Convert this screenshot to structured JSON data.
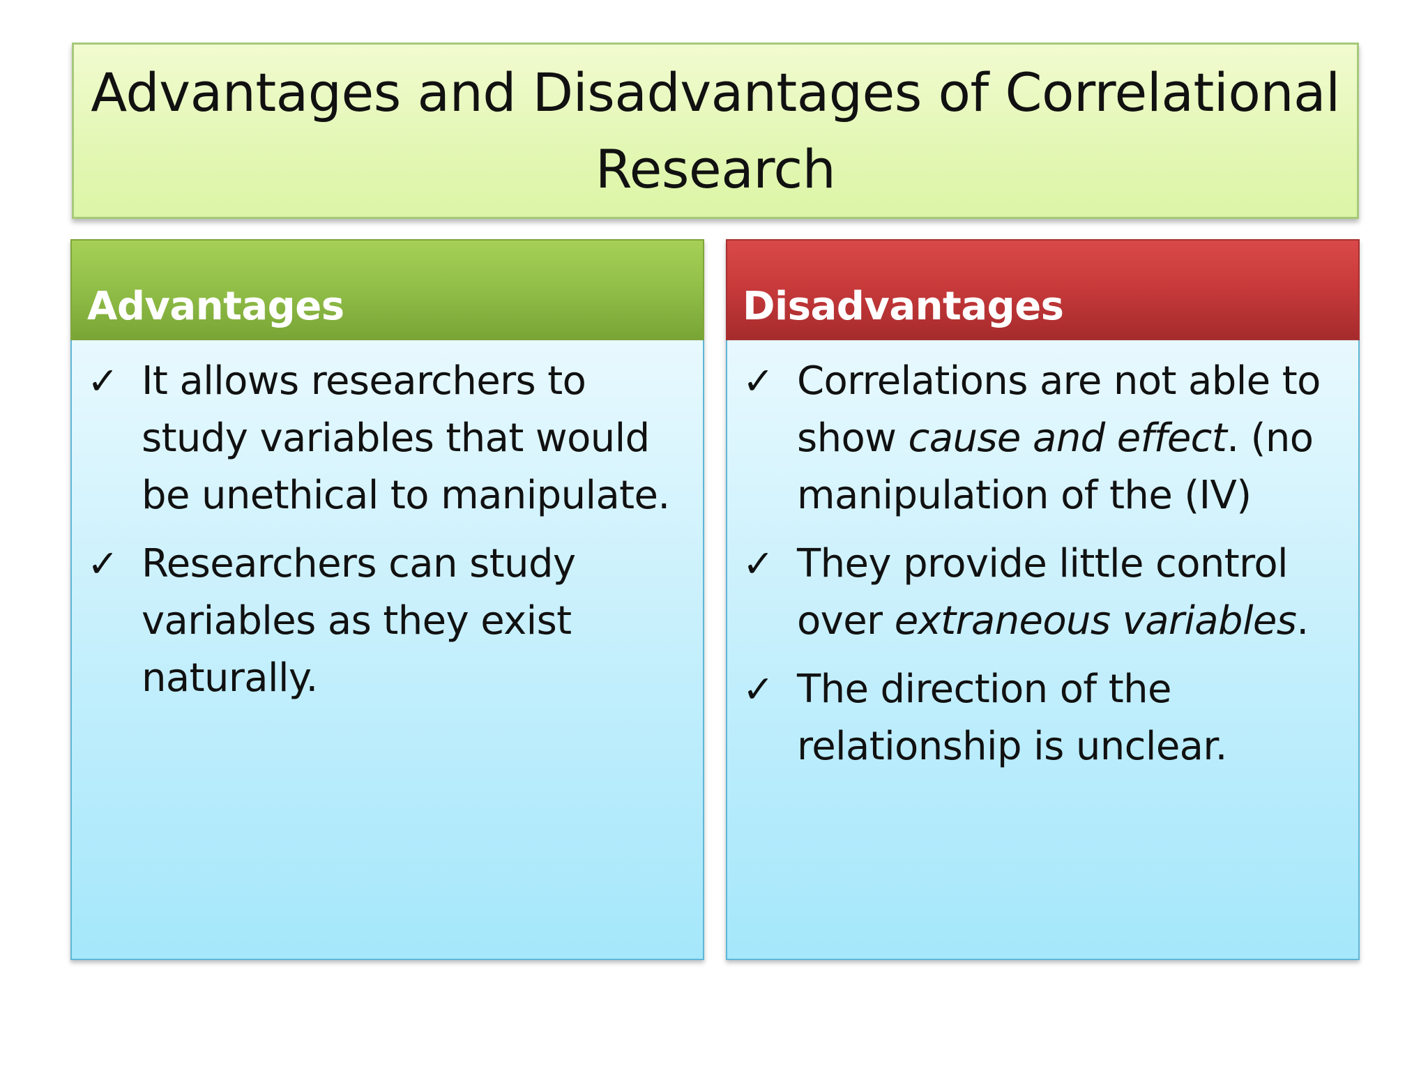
{
  "title": "Advantages and Disadvantages of Correlational Research",
  "check_glyph": "✓",
  "advantages": {
    "header": "Advantages",
    "items": [
      {
        "text": "It allows researchers to study variables that would be unethical to manipulate."
      },
      {
        "text": "Researchers can study variables as they exist naturally."
      }
    ]
  },
  "disadvantages": {
    "header": "Disadvantages",
    "items": [
      {
        "pre": "Correlations are not able to show ",
        "em": "cause and effect",
        "post": ". (no manipulation of the (IV)"
      },
      {
        "pre": "They provide little control over ",
        "em": "extraneous variables",
        "post": "."
      },
      {
        "pre": "The direction of the relationship is unclear.",
        "em": "",
        "post": ""
      }
    ]
  },
  "colors": {
    "title_bg": "#e3f7b4",
    "advantages_header": "#93c049",
    "disadvantages_header": "#c93a3b",
    "body_bg": "#c8f0fc"
  }
}
